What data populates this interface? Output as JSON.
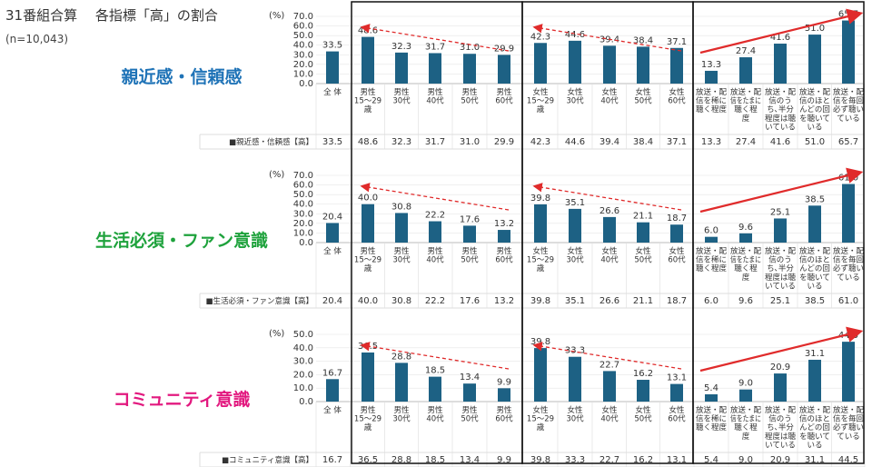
{
  "header": {
    "title": "31番組合算　 各指標「高」の割合",
    "n": "(n=10,043)"
  },
  "colors": {
    "bar": "#1d6184",
    "arrow": "#e02b2b",
    "frame": "#111111"
  },
  "chart_data": [
    {
      "type": "bar",
      "indicator": "親近感・信頼感",
      "indicator_color": "#1f73b7",
      "unit": "(%)",
      "ylim": [
        0,
        70
      ],
      "yticks": [
        "0.0",
        "10.0",
        "20.0",
        "30.0",
        "40.0",
        "50.0",
        "60.0",
        "70.0"
      ],
      "series": [
        {
          "name": "■親近感・信頼感【高】",
          "values": [
            33.5,
            48.6,
            32.3,
            31.7,
            31.0,
            29.9,
            42.3,
            44.6,
            39.4,
            38.4,
            37.1,
            13.3,
            27.4,
            41.6,
            51.0,
            65.7
          ]
        }
      ]
    },
    {
      "type": "bar",
      "indicator": "生活必須・ファン意識",
      "indicator_color": "#1ea23c",
      "unit": "(%)",
      "ylim": [
        0,
        70
      ],
      "yticks": [
        "0.0",
        "10.0",
        "20.0",
        "30.0",
        "40.0",
        "50.0",
        "60.0",
        "70.0"
      ],
      "series": [
        {
          "name": "■生活必須・ファン意識【高】",
          "values": [
            20.4,
            40.0,
            30.8,
            22.2,
            17.6,
            13.2,
            39.8,
            35.1,
            26.6,
            21.1,
            18.7,
            6.0,
            9.6,
            25.1,
            38.5,
            61.0
          ]
        }
      ]
    },
    {
      "type": "bar",
      "indicator": "コミュニティ意識",
      "indicator_color": "#e2197f",
      "unit": "(%)",
      "ylim": [
        0,
        50
      ],
      "yticks": [
        "0.0",
        "10.0",
        "20.0",
        "30.0",
        "40.0",
        "50.0"
      ],
      "series": [
        {
          "name": "■コミュニティ意識【高】",
          "values": [
            16.7,
            36.5,
            28.8,
            18.5,
            13.4,
            9.9,
            39.8,
            33.3,
            22.7,
            16.2,
            13.1,
            5.4,
            9.0,
            20.9,
            31.1,
            44.5
          ]
        }
      ]
    }
  ],
  "categories": [
    [
      "全 体"
    ],
    [
      "男性",
      "15～29",
      "歳"
    ],
    [
      "男性",
      "30代"
    ],
    [
      "男性",
      "40代"
    ],
    [
      "男性",
      "50代"
    ],
    [
      "男性",
      "60代"
    ],
    [
      "女性",
      "15～29",
      "歳"
    ],
    [
      "女性",
      "30代"
    ],
    [
      "女性",
      "40代"
    ],
    [
      "女性",
      "50代"
    ],
    [
      "女性",
      "60代"
    ],
    [
      "放送・配",
      "信を稀に",
      "聴く程度"
    ],
    [
      "放送・配",
      "信をたまに",
      "聴く程",
      "度"
    ],
    [
      "放送・配",
      "信のう",
      "ち､半分",
      "程度は聴",
      "いている"
    ],
    [
      "放送・配",
      "信のほと",
      "んどの回",
      "を聴いて",
      "いる"
    ],
    [
      "放送・配",
      "信を毎回",
      "必ず聴い",
      "ている"
    ]
  ]
}
